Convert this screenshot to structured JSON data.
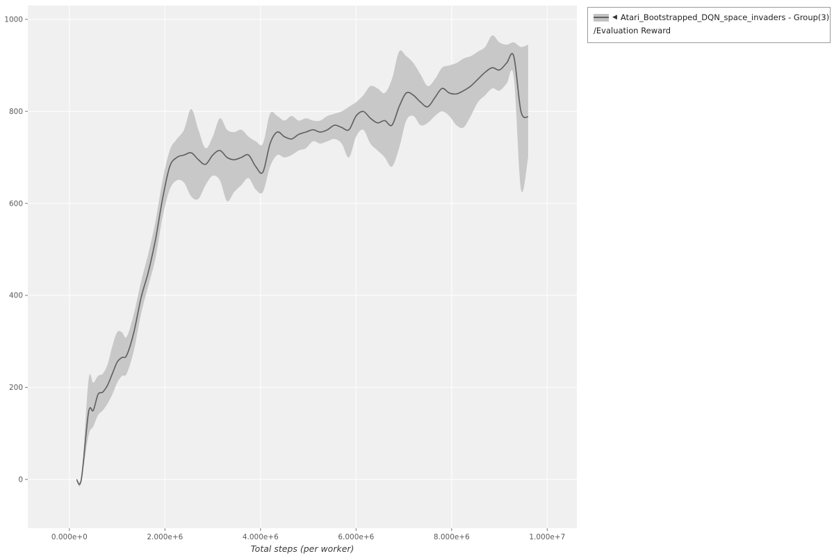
{
  "colors": {
    "line": "#616161",
    "band": "#c3c3c3",
    "plot_bg": "#f0f0f0",
    "grid": "#ffffff",
    "tick": "#777777",
    "tick_text": "#5a5a5a"
  },
  "legend": {
    "collapse_icon": "◀",
    "label_line1": "Atari_Bootstrapped_DQN_space_invaders - Group(3)",
    "label_line2": "/Evaluation Reward"
  },
  "chart_data": {
    "type": "line",
    "title": "",
    "xlabel": "Total steps (per worker)",
    "ylabel": "",
    "legend_entries": [
      "Atari_Bootstrapped_DQN_space_invaders - Group(3)/Evaluation Reward"
    ],
    "legend_position": "top-right",
    "grid": true,
    "xlim": [
      -870000,
      10620000
    ],
    "ylim": [
      -106,
      1030
    ],
    "x_ticks": {
      "values": [
        0,
        2000000,
        4000000,
        6000000,
        8000000,
        10000000
      ],
      "labels": [
        "0.000e+0",
        "2.000e+6",
        "4.000e+6",
        "6.000e+6",
        "8.000e+6",
        "1.000e+7"
      ]
    },
    "y_ticks": {
      "values": [
        0,
        200,
        400,
        600,
        800,
        1000
      ],
      "labels": [
        "0",
        "200",
        "400",
        "600",
        "800",
        "1000"
      ]
    },
    "series": [
      {
        "name": "Atari_Bootstrapped_DQN_space_invaders - Group(3)/Evaluation Reward",
        "x": [
          150000,
          250000,
          400000,
          500000,
          600000,
          700000,
          800000,
          900000,
          1000000,
          1100000,
          1200000,
          1350000,
          1500000,
          1650000,
          1800000,
          1950000,
          2100000,
          2250000,
          2400000,
          2550000,
          2700000,
          2850000,
          3000000,
          3150000,
          3300000,
          3450000,
          3600000,
          3750000,
          3900000,
          4050000,
          4200000,
          4350000,
          4500000,
          4650000,
          4800000,
          4950000,
          5100000,
          5250000,
          5400000,
          5550000,
          5700000,
          5850000,
          6000000,
          6150000,
          6300000,
          6450000,
          6600000,
          6750000,
          6900000,
          7050000,
          7200000,
          7350000,
          7500000,
          7650000,
          7800000,
          7950000,
          8100000,
          8250000,
          8400000,
          8550000,
          8700000,
          8850000,
          9000000,
          9150000,
          9300000,
          9450000,
          9600000
        ],
        "mean": [
          0,
          0,
          145,
          150,
          185,
          190,
          205,
          230,
          255,
          265,
          270,
          320,
          395,
          450,
          520,
          610,
          680,
          700,
          705,
          710,
          695,
          685,
          705,
          715,
          700,
          695,
          700,
          705,
          680,
          668,
          730,
          755,
          745,
          740,
          750,
          755,
          760,
          755,
          760,
          770,
          765,
          760,
          790,
          800,
          785,
          775,
          780,
          770,
          810,
          840,
          835,
          820,
          810,
          830,
          850,
          840,
          838,
          845,
          855,
          870,
          885,
          895,
          890,
          905,
          920,
          800,
          788
        ],
        "lower": [
          0,
          0,
          95,
          115,
          140,
          150,
          165,
          185,
          210,
          225,
          230,
          280,
          360,
          420,
          480,
          570,
          630,
          650,
          645,
          615,
          610,
          640,
          660,
          650,
          605,
          625,
          640,
          655,
          630,
          625,
          680,
          705,
          700,
          705,
          715,
          720,
          735,
          730,
          735,
          740,
          730,
          700,
          745,
          760,
          730,
          715,
          700,
          680,
          720,
          780,
          790,
          770,
          775,
          790,
          800,
          790,
          770,
          765,
          790,
          820,
          835,
          850,
          845,
          860,
          875,
          630,
          700
        ],
        "upper": [
          0,
          0,
          215,
          210,
          225,
          230,
          250,
          290,
          320,
          320,
          310,
          360,
          430,
          490,
          560,
          650,
          715,
          740,
          760,
          805,
          760,
          720,
          745,
          785,
          760,
          755,
          760,
          745,
          735,
          730,
          795,
          790,
          780,
          790,
          780,
          785,
          780,
          780,
          790,
          795,
          800,
          810,
          820,
          835,
          855,
          850,
          840,
          870,
          930,
          920,
          905,
          880,
          855,
          870,
          895,
          900,
          905,
          915,
          920,
          930,
          940,
          965,
          950,
          945,
          950,
          940,
          945
        ]
      }
    ]
  }
}
